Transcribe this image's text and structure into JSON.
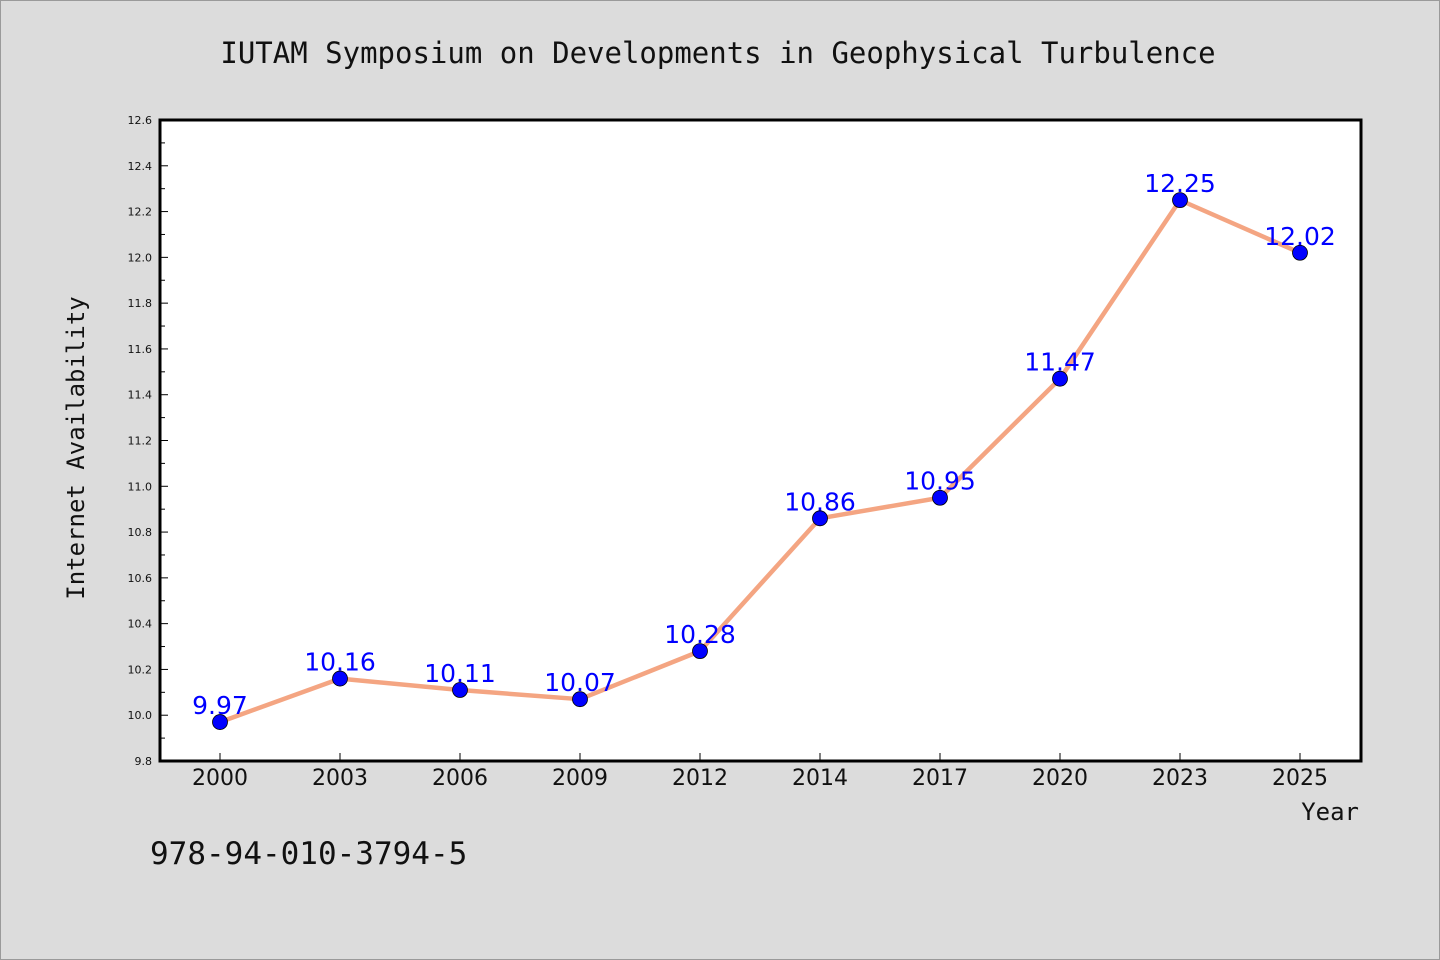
{
  "footer_code": "978-94-010-3794-5",
  "colors": {
    "background": "#dcdcdc",
    "plot_background": "#ffffff",
    "line": "#f4a582",
    "marker": "#0000ff",
    "data_label": "#0000ff"
  },
  "chart_data": {
    "type": "line",
    "title": "IUTAM Symposium on Developments in Geophysical Turbulence",
    "xlabel": "Year",
    "ylabel": "Internet Availability",
    "categories": [
      "2000",
      "2003",
      "2006",
      "2009",
      "2012",
      "2014",
      "2017",
      "2020",
      "2023",
      "2025"
    ],
    "series": [
      {
        "values": [
          9.97,
          10.16,
          10.11,
          10.07,
          10.28,
          10.86,
          10.95,
          11.47,
          12.25,
          12.02
        ],
        "labels": [
          "9.97",
          "10.16",
          "10.11",
          "10.07",
          "10.28",
          "10.86",
          "10.95",
          "11.47",
          "12.25",
          "12.02"
        ]
      }
    ],
    "ylim": [
      9.8,
      12.6
    ],
    "yticks": [
      "9.8",
      "10.0",
      "10.2",
      "10.4",
      "10.6",
      "10.8",
      "11.0",
      "11.2",
      "11.4",
      "11.6",
      "11.8",
      "12.0",
      "12.2",
      "12.4",
      "12.6"
    ],
    "grid": false,
    "legend": "none",
    "marker": "circle"
  }
}
